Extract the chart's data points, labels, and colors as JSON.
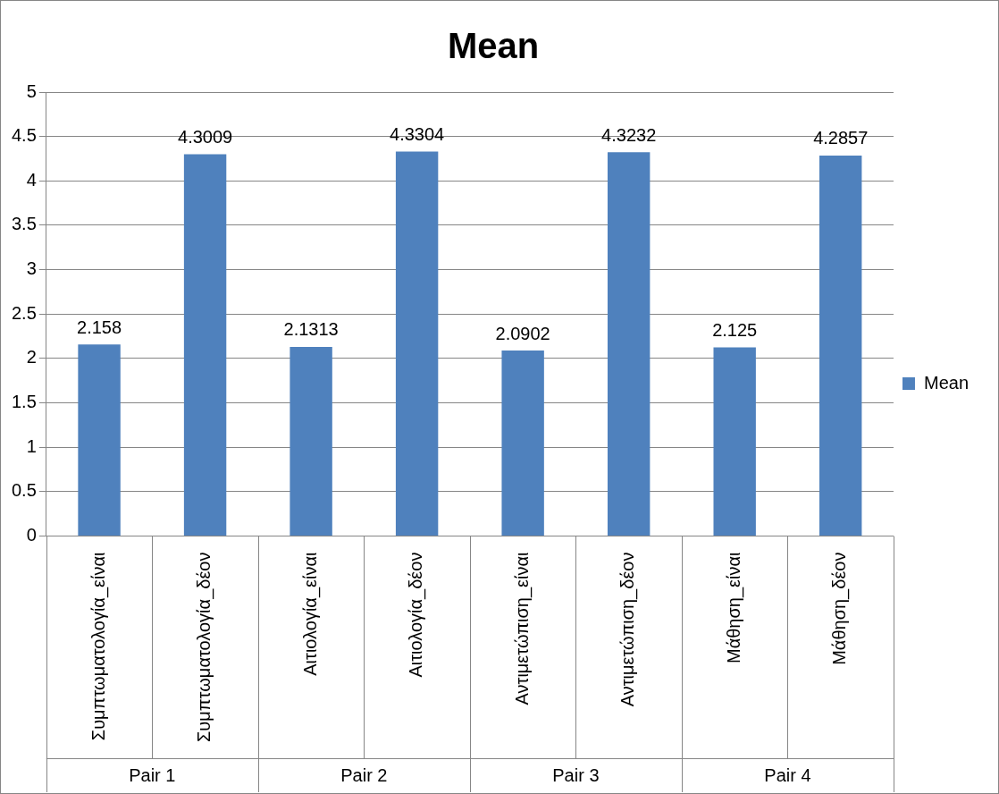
{
  "chart_data": {
    "type": "bar",
    "title": "Mean",
    "categories": [
      "Συμπτωματολογία_είναι",
      "Συμπτωματολογία_δέον",
      "Αιτιολογία_είναι",
      "Αιτιολογία_δέον",
      "Αντιμετώπιση_είναι",
      "Αντιμετώπιση_δέον",
      "Μάθηση_είναι",
      "Μάθηση_δέον"
    ],
    "series": [
      {
        "name": "Mean",
        "color": "#4f81bd",
        "values": [
          2.158,
          4.3009,
          2.1313,
          4.3304,
          2.0902,
          4.3232,
          2.125,
          4.2857
        ]
      }
    ],
    "ylim": [
      0,
      5
    ],
    "yticks": [
      0,
      0.5,
      1,
      1.5,
      2,
      2.5,
      3,
      3.5,
      4,
      4.5,
      5
    ],
    "grid": "y",
    "legend": "right",
    "data_labels": true,
    "annotations": [
      "Pair 1",
      "Pair 2",
      "Pair 3",
      "Pair 4"
    ]
  }
}
